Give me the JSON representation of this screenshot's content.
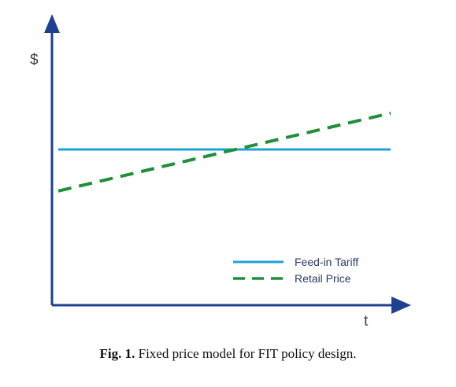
{
  "chart_data": {
    "type": "line",
    "title": "",
    "xlabel": "t",
    "ylabel": "$",
    "x": [
      0,
      1
    ],
    "xlim": [
      0,
      1
    ],
    "ylim": [
      0,
      1
    ],
    "grid": false,
    "legend_position": "bottom-right",
    "series": [
      {
        "name": "Feed-in Tariff",
        "values": [
          0.6,
          0.6
        ],
        "color": "#1aa3d4",
        "style": "solid"
      },
      {
        "name": "Retail Price",
        "values": [
          0.44,
          0.74
        ],
        "color": "#1f8f3a",
        "style": "dashed"
      }
    ]
  },
  "caption": {
    "label": "Fig. 1.",
    "text": "Fixed price model for FIT policy design."
  },
  "colors": {
    "axis": "#1f3f8f"
  }
}
